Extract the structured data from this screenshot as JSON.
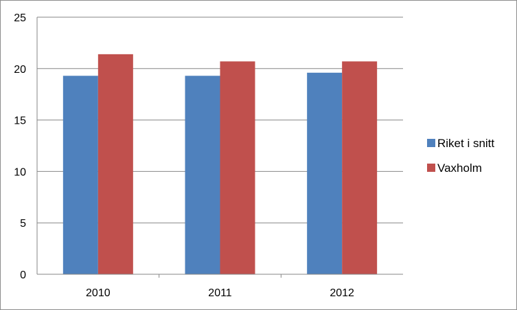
{
  "chart_data": {
    "type": "bar",
    "categories": [
      "2010",
      "2011",
      "2012"
    ],
    "series": [
      {
        "name": "Riket i snitt",
        "values": [
          19.3,
          19.3,
          19.6
        ],
        "color": "#4f81bd"
      },
      {
        "name": "Vaxholm",
        "values": [
          21.4,
          20.7,
          20.7
        ],
        "color": "#c0504d"
      }
    ],
    "yticks": [
      "0",
      "5",
      "10",
      "15",
      "20",
      "25"
    ],
    "ylim": [
      0,
      25
    ],
    "grid": true,
    "legend_position": "right",
    "title": "",
    "xlabel": "",
    "ylabel": ""
  }
}
